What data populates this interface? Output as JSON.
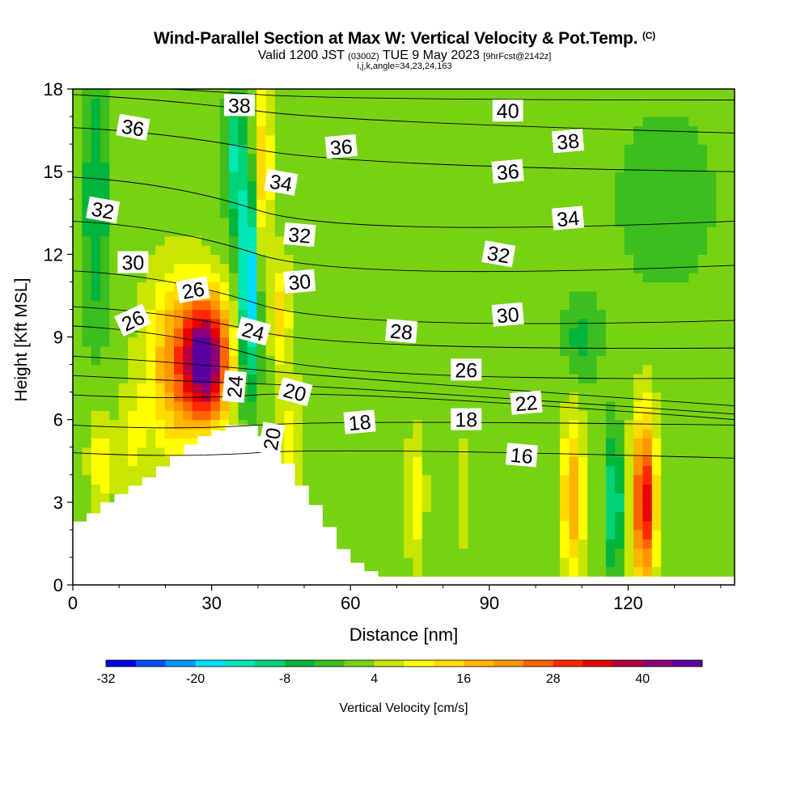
{
  "titles": {
    "main": "Wind-Parallel Section at Max W: Vertical Velocity & Pot.Temp.",
    "copyright": "(C)",
    "valid_prefix": "Valid 1200 JST",
    "valid_utc": "(0300Z)",
    "valid_date": "TUE 9 May 2023",
    "forecast": "[9hrFcst@2142z]",
    "indices": "i,j,k,angle=34,23,24,163"
  },
  "chart_data": {
    "type": "heatmap",
    "xlabel": "Distance [nm]",
    "ylabel": "Height [Kft MSL]",
    "xlim": [
      0,
      143
    ],
    "ylim": [
      0,
      18
    ],
    "x_ticks": [
      0,
      30,
      60,
      90,
      120
    ],
    "y_ticks": [
      0,
      3,
      6,
      9,
      12,
      15,
      18
    ],
    "colorbar": {
      "label": "Vertical Velocity [cm/s]",
      "min": -32,
      "max": 48,
      "step": 4,
      "tick_values": [
        -32,
        -20,
        -8,
        4,
        16,
        28,
        40
      ],
      "colors": [
        "#0000e0",
        "#0050ff",
        "#0096ff",
        "#00dcff",
        "#00e6b4",
        "#00d278",
        "#00b43c",
        "#3cbe1e",
        "#78d214",
        "#c8e600",
        "#ffff00",
        "#ffdc00",
        "#ffb400",
        "#ff9600",
        "#ff6400",
        "#ff2800",
        "#e60000",
        "#b4003c",
        "#8c0078",
        "#5a00a0"
      ]
    },
    "background_value": 2,
    "anomalies": [
      {
        "x": 29,
        "y": 8.2,
        "rx": 5,
        "ry": 2.2,
        "value": 46
      },
      {
        "x": 22,
        "y": 8,
        "rx": 6,
        "ry": 3.2,
        "value": 20
      },
      {
        "x": 38,
        "y": 11,
        "rx": 2.2,
        "ry": 4,
        "value": -22
      },
      {
        "x": 35,
        "y": 15.5,
        "rx": 2,
        "ry": 2.5,
        "value": -12
      },
      {
        "x": 41,
        "y": 15,
        "rx": 2,
        "ry": 3.5,
        "value": 16
      },
      {
        "x": 45,
        "y": 9.8,
        "rx": 2,
        "ry": 2,
        "value": 14
      },
      {
        "x": 5,
        "y": 14,
        "rx": 3,
        "ry": 5,
        "value": -8
      },
      {
        "x": 6,
        "y": 4.5,
        "rx": 2.5,
        "ry": 1.7,
        "value": 12
      },
      {
        "x": 13,
        "y": 5,
        "rx": 3,
        "ry": 2.5,
        "value": 8
      },
      {
        "x": 47,
        "y": 5,
        "rx": 3,
        "ry": 2.5,
        "value": 10
      },
      {
        "x": 74,
        "y": 3.2,
        "rx": 2,
        "ry": 2.2,
        "value": 12
      },
      {
        "x": 84,
        "y": 3.2,
        "rx": 1.5,
        "ry": 2,
        "value": 8
      },
      {
        "x": 108,
        "y": 3.2,
        "rx": 2.5,
        "ry": 2.8,
        "value": 20
      },
      {
        "x": 117,
        "y": 3,
        "rx": 1.6,
        "ry": 2.5,
        "value": -16
      },
      {
        "x": 123.5,
        "y": 3,
        "rx": 2.5,
        "ry": 3,
        "value": 36
      },
      {
        "x": 110,
        "y": 9,
        "rx": 4,
        "ry": 1.5,
        "value": -6
      },
      {
        "x": 128,
        "y": 14,
        "rx": 10,
        "ry": 3,
        "value": -4
      }
    ],
    "terrain": [
      [
        0,
        2.3
      ],
      [
        3,
        2.6
      ],
      [
        6,
        3
      ],
      [
        9,
        3.3
      ],
      [
        12,
        3.6
      ],
      [
        15,
        3.9
      ],
      [
        18,
        4.3
      ],
      [
        21,
        4.7
      ],
      [
        24,
        5.1
      ],
      [
        27,
        5.4
      ],
      [
        30,
        5.6
      ],
      [
        33,
        5.8
      ],
      [
        38,
        5.8
      ],
      [
        40,
        5.4
      ],
      [
        42,
        5.0
      ],
      [
        45,
        4.4
      ],
      [
        48,
        3.6
      ],
      [
        51,
        2.9
      ],
      [
        54,
        2.1
      ],
      [
        57,
        1.3
      ],
      [
        60,
        0.8
      ],
      [
        63,
        0.5
      ],
      [
        66,
        0.3
      ],
      [
        143,
        0.3
      ]
    ],
    "theta_lines": [
      {
        "v": 16,
        "y0": 4.8,
        "ymid": 4.8,
        "y1": 4.6
      },
      {
        "v": 18,
        "y0": 5.8,
        "ymid": 5.8,
        "y1": 5.8
      },
      {
        "v": 20,
        "y0": 6.9,
        "ymid": 6.9,
        "y1": 6.0
      },
      {
        "v": 22,
        "y0": 7.6,
        "ymid": 7.3,
        "y1": 6.2
      },
      {
        "v": 24,
        "y0": 8.3,
        "ymid": 7.8,
        "y1": 6.5
      },
      {
        "v": 26,
        "y0": 9.4,
        "ymid": 8.3,
        "y1": 7.5
      },
      {
        "v": 28,
        "y0": 10.1,
        "ymid": 9.2,
        "y1": 8.6
      },
      {
        "v": 30,
        "y0": 11.4,
        "ymid": 10.2,
        "y1": 9.6
      },
      {
        "v": 32,
        "y0": 13.2,
        "ymid": 12.0,
        "y1": 11.6
      },
      {
        "v": 34,
        "y0": 14.8,
        "ymid": 13.6,
        "y1": 13.2
      },
      {
        "v": 36,
        "y0": 16.6,
        "ymid": 15.8,
        "y1": 15.0
      },
      {
        "v": 38,
        "y0": 17.8,
        "ymid": 17.2,
        "y1": 16.4
      },
      {
        "v": 40,
        "y0": 18.2,
        "ymid": 17.8,
        "y1": 17.6
      }
    ],
    "theta_labels": [
      {
        "text": "38",
        "x": 36,
        "y": 17.4,
        "rot": 0
      },
      {
        "text": "40",
        "x": 94,
        "y": 17.2,
        "rot": 0
      },
      {
        "text": "36",
        "x": 13,
        "y": 16.6,
        "rot": 10
      },
      {
        "text": "36",
        "x": 58,
        "y": 15.9,
        "rot": -5
      },
      {
        "text": "38",
        "x": 107,
        "y": 16.1,
        "rot": -5
      },
      {
        "text": "36",
        "x": 94,
        "y": 15.0,
        "rot": -5
      },
      {
        "text": "34",
        "x": 45,
        "y": 14.6,
        "rot": 10
      },
      {
        "text": "32",
        "x": 6.5,
        "y": 13.6,
        "rot": 10
      },
      {
        "text": "34",
        "x": 107,
        "y": 13.3,
        "rot": -5
      },
      {
        "text": "32",
        "x": 49,
        "y": 12.7,
        "rot": 5
      },
      {
        "text": "32",
        "x": 92,
        "y": 12.0,
        "rot": 10
      },
      {
        "text": "30",
        "x": 13,
        "y": 11.7,
        "rot": 0
      },
      {
        "text": "30",
        "x": 49,
        "y": 11.0,
        "rot": -5
      },
      {
        "text": "26",
        "x": 26,
        "y": 10.7,
        "rot": -10
      },
      {
        "text": "30",
        "x": 94,
        "y": 9.8,
        "rot": -5
      },
      {
        "text": "26",
        "x": 13,
        "y": 9.6,
        "rot": -25
      },
      {
        "text": "24",
        "x": 39,
        "y": 9.2,
        "rot": 15
      },
      {
        "text": "28",
        "x": 71,
        "y": 9.2,
        "rot": 5
      },
      {
        "text": "26",
        "x": 85,
        "y": 7.8,
        "rot": 0
      },
      {
        "text": "24",
        "x": 35,
        "y": 7.2,
        "rot": -85
      },
      {
        "text": "20",
        "x": 48,
        "y": 7.0,
        "rot": 15
      },
      {
        "text": "22",
        "x": 98,
        "y": 6.6,
        "rot": -5
      },
      {
        "text": "18",
        "x": 62,
        "y": 5.9,
        "rot": -5
      },
      {
        "text": "18",
        "x": 85,
        "y": 6.0,
        "rot": 0
      },
      {
        "text": "20",
        "x": 43,
        "y": 5.3,
        "rot": -80
      },
      {
        "text": "16",
        "x": 97,
        "y": 4.7,
        "rot": 5
      }
    ]
  }
}
